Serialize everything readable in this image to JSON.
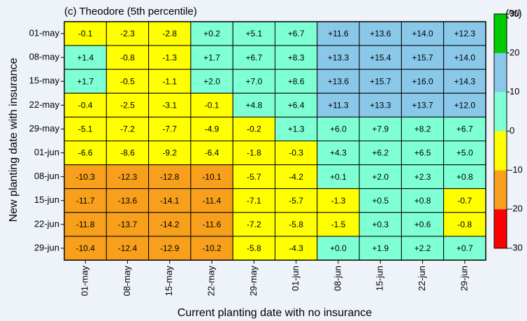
{
  "chart_data": {
    "type": "heatmap",
    "title": "(c) Theodore (5th percentile)",
    "x_label": "Current planting date with no insurance",
    "y_label": "New planting date with insurance",
    "x_categories": [
      "01-may",
      "08-may",
      "15-may",
      "22-may",
      "29-may",
      "01-jun",
      "08-jun",
      "15-jun",
      "22-jun",
      "29-jun"
    ],
    "y_categories": [
      "01-may",
      "08-may",
      "15-may",
      "22-may",
      "29-may",
      "01-jun",
      "08-jun",
      "15-jun",
      "22-jun",
      "29-jun"
    ],
    "values": [
      [
        -0.1,
        -2.3,
        -2.8,
        0.2,
        5.1,
        6.7,
        11.6,
        13.6,
        14.0,
        12.3
      ],
      [
        1.4,
        -0.8,
        -1.3,
        1.7,
        6.7,
        8.3,
        13.3,
        15.4,
        15.7,
        14.0
      ],
      [
        1.7,
        -0.5,
        -1.1,
        2.0,
        7.0,
        8.6,
        13.6,
        15.7,
        16.0,
        14.3
      ],
      [
        -0.4,
        -2.5,
        -3.1,
        -0.1,
        4.8,
        6.4,
        11.3,
        13.3,
        13.7,
        12.0
      ],
      [
        -5.1,
        -7.2,
        -7.7,
        -4.9,
        -0.2,
        1.3,
        6.0,
        7.9,
        8.2,
        6.7
      ],
      [
        -6.6,
        -8.6,
        -9.2,
        -6.4,
        -1.8,
        -0.3,
        4.3,
        6.2,
        6.5,
        5.0
      ],
      [
        -10.3,
        -12.3,
        -12.8,
        -10.1,
        -5.7,
        -4.2,
        0.1,
        2.0,
        2.3,
        0.8
      ],
      [
        -11.7,
        -13.6,
        -14.1,
        -11.4,
        -7.1,
        -5.7,
        -1.3,
        0.5,
        0.8,
        -0.7
      ],
      [
        -11.8,
        -13.7,
        -14.2,
        -11.6,
        -7.2,
        -5.8,
        -1.5,
        0.3,
        0.6,
        -0.8
      ],
      [
        -10.4,
        -12.4,
        -12.9,
        -10.2,
        -5.8,
        -4.3,
        0.0,
        1.9,
        2.2,
        0.7
      ]
    ],
    "value_labels": [
      [
        "-0.1",
        "-2.3",
        "-2.8",
        "+0.2",
        "+5.1",
        "+6.7",
        "+11.6",
        "+13.6",
        "+14.0",
        "+12.3"
      ],
      [
        "+1.4",
        "-0.8",
        "-1.3",
        "+1.7",
        "+6.7",
        "+8.3",
        "+13.3",
        "+15.4",
        "+15.7",
        "+14.0"
      ],
      [
        "+1.7",
        "-0.5",
        "-1.1",
        "+2.0",
        "+7.0",
        "+8.6",
        "+13.6",
        "+15.7",
        "+16.0",
        "+14.3"
      ],
      [
        "-0.4",
        "-2.5",
        "-3.1",
        "-0.1",
        "+4.8",
        "+6.4",
        "+11.3",
        "+13.3",
        "+13.7",
        "+12.0"
      ],
      [
        "-5.1",
        "-7.2",
        "-7.7",
        "-4.9",
        "-0.2",
        "+1.3",
        "+6.0",
        "+7.9",
        "+8.2",
        "+6.7"
      ],
      [
        "-6.6",
        "-8.6",
        "-9.2",
        "-6.4",
        "-1.8",
        "-0.3",
        "+4.3",
        "+6.2",
        "+6.5",
        "+5.0"
      ],
      [
        "-10.3",
        "-12.3",
        "-12.8",
        "-10.1",
        "-5.7",
        "-4.2",
        "+0.1",
        "+2.0",
        "+2.3",
        "+0.8"
      ],
      [
        "-11.7",
        "-13.6",
        "-14.1",
        "-11.4",
        "-7.1",
        "-5.7",
        "-1.3",
        "+0.5",
        "+0.8",
        "-0.7"
      ],
      [
        "-11.8",
        "-13.7",
        "-14.2",
        "-11.6",
        "-7.2",
        "-5.8",
        "-1.5",
        "+0.3",
        "+0.6",
        "-0.8"
      ],
      [
        "-10.4",
        "-12.4",
        "-12.9",
        "-10.2",
        "-5.8",
        "-4.3",
        "+0.0",
        "+1.9",
        "+2.2",
        "+0.7"
      ]
    ],
    "colorbar_title": "(%)",
    "zlim": [
      -30,
      30
    ],
    "zticks": [
      -30,
      -20,
      -10,
      0,
      10,
      20,
      30
    ],
    "colors": [
      "#ff0000",
      "#f8a01c",
      "#ffff00",
      "#7fffd4",
      "#8ac8ea",
      "#00cc00"
    ]
  }
}
